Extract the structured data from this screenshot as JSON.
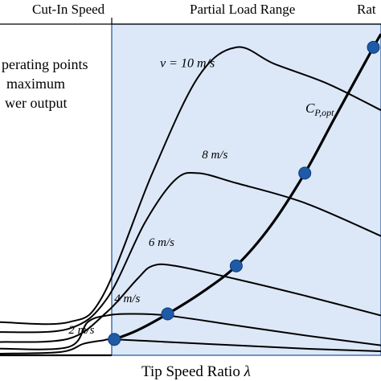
{
  "chart_data": {
    "type": "line",
    "colors": {
      "partial_load_fill": "#dce8f8",
      "region_border": "#2a5f9e",
      "operating_point": "#1f5aa6",
      "curve": "#000000"
    },
    "region_labels": {
      "cut_in": "Cut-In Speed",
      "partial_load": "Partial Load Range",
      "rated": "Rat"
    },
    "annotation_lines": [
      "perating points",
      "maximum",
      "wer output"
    ],
    "xlabel_text": "Tip Speed Ratio ",
    "xlabel_symbol": "λ",
    "optimum_curve_label": {
      "main": "C",
      "sub": "P,opt"
    },
    "series": [
      {
        "label": "v = 10 m/s",
        "peak_x": 0.62,
        "peak_y": 0.93
      },
      {
        "label": "8 m/s",
        "peak_x": 0.52,
        "peak_y": 0.55
      },
      {
        "label": "6 m/s",
        "peak_x": 0.44,
        "peak_y": 0.27
      },
      {
        "label": "4 m/s",
        "peak_x": 0.38,
        "peak_y": 0.125
      },
      {
        "label": "2 m/s",
        "peak_x": 0.3,
        "peak_y": 0.048
      }
    ],
    "operating_points": [
      {
        "x": 0.3,
        "y": 0.048
      },
      {
        "x": 0.44,
        "y": 0.125
      },
      {
        "x": 0.62,
        "y": 0.27
      },
      {
        "x": 0.8,
        "y": 0.55
      },
      {
        "x": 0.98,
        "y": 0.93
      }
    ]
  }
}
